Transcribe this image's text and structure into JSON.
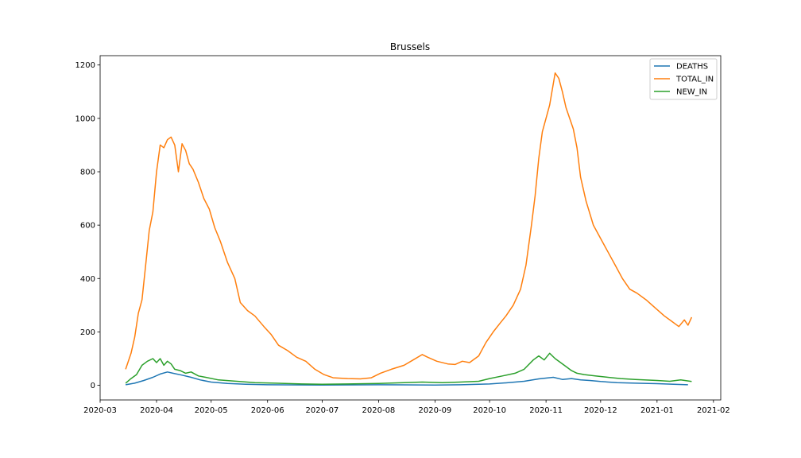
{
  "chart_data": {
    "type": "line",
    "title": "Brussels",
    "xlabel": "",
    "ylabel": "",
    "xlim": [
      "2020-03-01",
      "2021-02-05"
    ],
    "ylim": [
      -55,
      1235
    ],
    "x_ticks": [
      "2020-03",
      "2020-04",
      "2020-05",
      "2020-06",
      "2020-07",
      "2020-08",
      "2020-09",
      "2020-10",
      "2020-11",
      "2020-12",
      "2021-01",
      "2021-02"
    ],
    "y_ticks": [
      0,
      200,
      400,
      600,
      800,
      1000,
      1200
    ],
    "legend_position": "top-right",
    "grid": false,
    "series": [
      {
        "name": "DEATHS",
        "color": "#1f77b4",
        "points": [
          [
            "2020-03-15",
            2
          ],
          [
            "2020-03-20",
            8
          ],
          [
            "2020-03-25",
            18
          ],
          [
            "2020-03-30",
            30
          ],
          [
            "2020-04-03",
            42
          ],
          [
            "2020-04-07",
            50
          ],
          [
            "2020-04-10",
            45
          ],
          [
            "2020-04-15",
            38
          ],
          [
            "2020-04-20",
            30
          ],
          [
            "2020-04-25",
            20
          ],
          [
            "2020-05-01",
            12
          ],
          [
            "2020-05-10",
            7
          ],
          [
            "2020-05-20",
            4
          ],
          [
            "2020-06-01",
            2
          ],
          [
            "2020-07-01",
            1
          ],
          [
            "2020-08-01",
            2
          ],
          [
            "2020-09-01",
            1
          ],
          [
            "2020-09-15",
            2
          ],
          [
            "2020-10-01",
            5
          ],
          [
            "2020-10-10",
            9
          ],
          [
            "2020-10-20",
            15
          ],
          [
            "2020-10-28",
            24
          ],
          [
            "2020-11-05",
            30
          ],
          [
            "2020-11-10",
            22
          ],
          [
            "2020-11-15",
            25
          ],
          [
            "2020-11-20",
            20
          ],
          [
            "2020-11-25",
            18
          ],
          [
            "2020-12-01",
            14
          ],
          [
            "2020-12-10",
            10
          ],
          [
            "2020-12-20",
            8
          ],
          [
            "2021-01-01",
            6
          ],
          [
            "2021-01-10",
            4
          ],
          [
            "2021-01-18",
            2
          ]
        ]
      },
      {
        "name": "TOTAL_IN",
        "color": "#ff7f0e",
        "points": [
          [
            "2020-03-15",
            60
          ],
          [
            "2020-03-18",
            120
          ],
          [
            "2020-03-20",
            180
          ],
          [
            "2020-03-22",
            270
          ],
          [
            "2020-03-24",
            320
          ],
          [
            "2020-03-26",
            450
          ],
          [
            "2020-03-28",
            580
          ],
          [
            "2020-03-30",
            650
          ],
          [
            "2020-04-01",
            800
          ],
          [
            "2020-04-03",
            900
          ],
          [
            "2020-04-05",
            890
          ],
          [
            "2020-04-07",
            920
          ],
          [
            "2020-04-09",
            930
          ],
          [
            "2020-04-11",
            900
          ],
          [
            "2020-04-13",
            800
          ],
          [
            "2020-04-15",
            905
          ],
          [
            "2020-04-17",
            880
          ],
          [
            "2020-04-19",
            830
          ],
          [
            "2020-04-21",
            810
          ],
          [
            "2020-04-24",
            760
          ],
          [
            "2020-04-27",
            700
          ],
          [
            "2020-04-30",
            660
          ],
          [
            "2020-05-03",
            590
          ],
          [
            "2020-05-06",
            540
          ],
          [
            "2020-05-10",
            460
          ],
          [
            "2020-05-14",
            400
          ],
          [
            "2020-05-17",
            310
          ],
          [
            "2020-05-21",
            280
          ],
          [
            "2020-05-25",
            260
          ],
          [
            "2020-05-30",
            220
          ],
          [
            "2020-06-03",
            190
          ],
          [
            "2020-06-07",
            150
          ],
          [
            "2020-06-12",
            130
          ],
          [
            "2020-06-17",
            105
          ],
          [
            "2020-06-22",
            90
          ],
          [
            "2020-06-27",
            60
          ],
          [
            "2020-07-02",
            40
          ],
          [
            "2020-07-07",
            28
          ],
          [
            "2020-07-15",
            25
          ],
          [
            "2020-07-22",
            24
          ],
          [
            "2020-07-28",
            28
          ],
          [
            "2020-08-02",
            45
          ],
          [
            "2020-08-08",
            60
          ],
          [
            "2020-08-15",
            75
          ],
          [
            "2020-08-20",
            95
          ],
          [
            "2020-08-25",
            115
          ],
          [
            "2020-08-28",
            105
          ],
          [
            "2020-09-02",
            90
          ],
          [
            "2020-09-08",
            80
          ],
          [
            "2020-09-12",
            78
          ],
          [
            "2020-09-16",
            90
          ],
          [
            "2020-09-20",
            85
          ],
          [
            "2020-09-25",
            110
          ],
          [
            "2020-09-29",
            160
          ],
          [
            "2020-10-03",
            200
          ],
          [
            "2020-10-07",
            235
          ],
          [
            "2020-10-10",
            260
          ],
          [
            "2020-10-14",
            300
          ],
          [
            "2020-10-18",
            360
          ],
          [
            "2020-10-21",
            450
          ],
          [
            "2020-10-24",
            600
          ],
          [
            "2020-10-26",
            710
          ],
          [
            "2020-10-28",
            850
          ],
          [
            "2020-10-30",
            950
          ],
          [
            "2020-11-01",
            1000
          ],
          [
            "2020-11-03",
            1050
          ],
          [
            "2020-11-05",
            1130
          ],
          [
            "2020-11-06",
            1170
          ],
          [
            "2020-11-08",
            1150
          ],
          [
            "2020-11-10",
            1100
          ],
          [
            "2020-11-12",
            1040
          ],
          [
            "2020-11-14",
            1000
          ],
          [
            "2020-11-16",
            960
          ],
          [
            "2020-11-18",
            890
          ],
          [
            "2020-11-20",
            780
          ],
          [
            "2020-11-23",
            690
          ],
          [
            "2020-11-27",
            600
          ],
          [
            "2020-12-01",
            550
          ],
          [
            "2020-12-05",
            500
          ],
          [
            "2020-12-09",
            450
          ],
          [
            "2020-12-13",
            400
          ],
          [
            "2020-12-17",
            360
          ],
          [
            "2020-12-21",
            345
          ],
          [
            "2020-12-26",
            320
          ],
          [
            "2020-12-31",
            290
          ],
          [
            "2021-01-05",
            260
          ],
          [
            "2021-01-09",
            240
          ],
          [
            "2021-01-13",
            220
          ],
          [
            "2021-01-16",
            245
          ],
          [
            "2021-01-18",
            225
          ],
          [
            "2021-01-20",
            255
          ]
        ]
      },
      {
        "name": "NEW_IN",
        "color": "#2ca02c",
        "points": [
          [
            "2020-03-15",
            8
          ],
          [
            "2020-03-18",
            25
          ],
          [
            "2020-03-21",
            40
          ],
          [
            "2020-03-24",
            75
          ],
          [
            "2020-03-27",
            90
          ],
          [
            "2020-03-30",
            100
          ],
          [
            "2020-04-01",
            85
          ],
          [
            "2020-04-03",
            100
          ],
          [
            "2020-04-05",
            75
          ],
          [
            "2020-04-07",
            90
          ],
          [
            "2020-04-09",
            80
          ],
          [
            "2020-04-11",
            60
          ],
          [
            "2020-04-14",
            55
          ],
          [
            "2020-04-17",
            45
          ],
          [
            "2020-04-20",
            50
          ],
          [
            "2020-04-24",
            35
          ],
          [
            "2020-04-28",
            30
          ],
          [
            "2020-05-05",
            20
          ],
          [
            "2020-05-15",
            15
          ],
          [
            "2020-05-25",
            10
          ],
          [
            "2020-06-05",
            8
          ],
          [
            "2020-06-20",
            5
          ],
          [
            "2020-07-01",
            4
          ],
          [
            "2020-07-15",
            5
          ],
          [
            "2020-08-01",
            7
          ],
          [
            "2020-08-15",
            10
          ],
          [
            "2020-08-25",
            12
          ],
          [
            "2020-09-05",
            10
          ],
          [
            "2020-09-15",
            12
          ],
          [
            "2020-09-25",
            15
          ],
          [
            "2020-10-01",
            25
          ],
          [
            "2020-10-08",
            35
          ],
          [
            "2020-10-15",
            45
          ],
          [
            "2020-10-20",
            60
          ],
          [
            "2020-10-25",
            95
          ],
          [
            "2020-10-28",
            110
          ],
          [
            "2020-10-31",
            95
          ],
          [
            "2020-11-03",
            120
          ],
          [
            "2020-11-06",
            100
          ],
          [
            "2020-11-09",
            85
          ],
          [
            "2020-11-12",
            70
          ],
          [
            "2020-11-15",
            55
          ],
          [
            "2020-11-18",
            45
          ],
          [
            "2020-11-22",
            40
          ],
          [
            "2020-11-28",
            35
          ],
          [
            "2020-12-05",
            30
          ],
          [
            "2020-12-12",
            25
          ],
          [
            "2020-12-20",
            22
          ],
          [
            "2021-01-01",
            18
          ],
          [
            "2021-01-08",
            15
          ],
          [
            "2021-01-14",
            20
          ],
          [
            "2021-01-20",
            14
          ]
        ]
      }
    ]
  }
}
